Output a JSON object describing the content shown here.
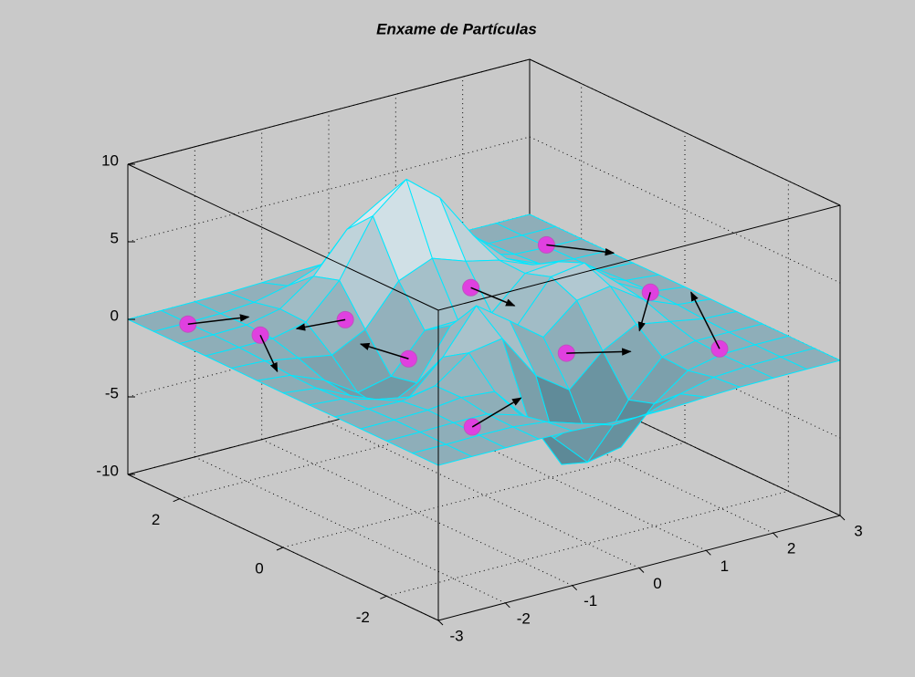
{
  "chart_data": {
    "type": "surface",
    "title": "Enxame de Partículas",
    "x": [
      -3,
      -2.5,
      -2,
      -1.5,
      -1,
      -0.5,
      0,
      0.5,
      1,
      1.5,
      2,
      2.5,
      3
    ],
    "y": [
      -3,
      -2.5,
      -2,
      -1.5,
      -1,
      -0.5,
      0,
      0.5,
      1,
      1.5,
      2,
      2.5,
      3
    ],
    "z": [
      [
        0,
        0,
        0,
        0,
        -0.03,
        -0.14,
        -0.24,
        -0.22,
        -0.11,
        -0.03,
        -0.01,
        0,
        0
      ],
      [
        0,
        0,
        0.02,
        0,
        -0.23,
        -0.91,
        -1.57,
        -1.41,
        -0.69,
        -0.18,
        -0.03,
        0,
        0
      ],
      [
        0,
        0.01,
        0.05,
        0.05,
        -0.59,
        -2.63,
        -4.75,
        -4.34,
        -2.1,
        -0.53,
        -0.06,
        0,
        0
      ],
      [
        0,
        0.01,
        0.08,
        0.33,
        0.15,
        -2.19,
        -5.68,
        -5.76,
        -2.64,
        -0.44,
        0.04,
        0.03,
        0
      ],
      [
        -0.01,
        -0.06,
        -0.13,
        0.3,
        1.86,
        2.22,
        -0.72,
        -2.22,
        -0.27,
        0.88,
        0.5,
        0.11,
        0.01
      ],
      [
        -0.03,
        -0.2,
        -0.8,
        -1.21,
        0.8,
        3.55,
        2,
        0.39,
        2.2,
        2.56,
        1.12,
        0.24,
        0.03
      ],
      [
        -0.04,
        -0.3,
        -1.33,
        -2.77,
        -1.65,
        1.48,
        0.98,
        0.38,
        2.94,
        3.27,
        1.41,
        0.3,
        0.03
      ],
      [
        -0.03,
        -0.25,
        -1.12,
        -2.49,
        -2,
        0.39,
        0.46,
        0.38,
        2.38,
        2.56,
        1.09,
        0.23,
        0.03
      ],
      [
        -0.01,
        -0.11,
        -0.48,
        -0.86,
        0.23,
        2.8,
        3.69,
        2.94,
        2.44,
        1.58,
        0.58,
        0.11,
        0.01
      ],
      [
        0,
        -0.02,
        -0.01,
        0.48,
        2.61,
        6.2,
        8,
        6.25,
        3.26,
        1.19,
        0.29,
        0.05,
        0
      ],
      [
        0,
        0.01,
        0.08,
        0.55,
        2.09,
        4.55,
        5.85,
        4.56,
        2.21,
        0.68,
        0.13,
        0.02,
        0
      ],
      [
        0,
        0,
        0.03,
        0.19,
        0.69,
        1.47,
        1.88,
        1.47,
        0.7,
        0.2,
        0.04,
        0,
        0
      ],
      [
        0,
        0,
        0.01,
        0.03,
        0.11,
        0.23,
        0.3,
        0.23,
        0.11,
        0.03,
        0.01,
        0,
        0
      ]
    ],
    "color": "#00e8ff",
    "xlim": [
      -3,
      3
    ],
    "ylim": [
      -3,
      3
    ],
    "zlim": [
      -10,
      10
    ],
    "xticks": [
      -3,
      -2,
      -1,
      0,
      1,
      2,
      3
    ],
    "yticks": [
      -2,
      0,
      2
    ],
    "zticks": [
      -10,
      -5,
      0,
      5,
      10
    ],
    "grid": true,
    "particles": {
      "color": "#e040e0",
      "x": [
        -2.52,
        -2.05,
        -0.92,
        -1.11,
        0.94,
        2.54,
        2.57,
        0.52,
        2.08,
        -1.89
      ],
      "y": [
        2.46,
        1.67,
        1.49,
        0.02,
        1.47,
        2.08,
        0.11,
        -0.92,
        -1.86,
        -2.22
      ],
      "z": [
        0,
        0,
        0,
        0,
        0,
        0,
        0,
        0,
        0,
        0
      ],
      "u": [
        0.73,
        -0.58,
        -0.65,
        -0.16,
        0.05,
        0.48,
        -0.89,
        0.65,
        0.88,
        1.06
      ],
      "v": [
        -0.23,
        -1.08,
        0.1,
        0.72,
        -0.78,
        -0.68,
        -0.94,
        -0.4,
        1.69,
        0.43
      ]
    }
  }
}
